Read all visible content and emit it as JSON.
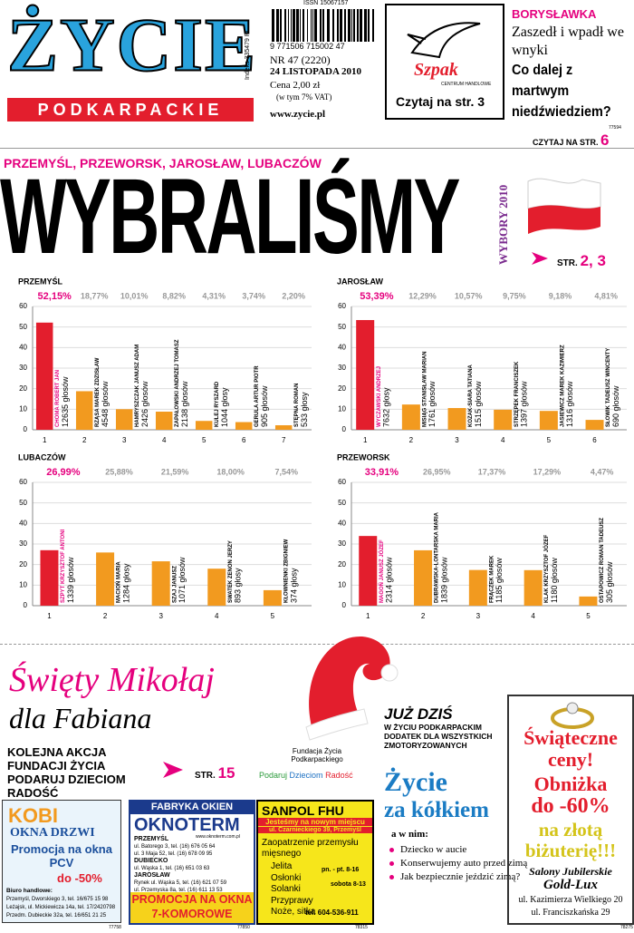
{
  "masthead": {
    "logo": "ŻYCIE",
    "region": "PODKARPACKIE",
    "issn": "ISSN 15067157",
    "barcode": "9 771506 715002",
    "barcode_suffix": "47",
    "issue": "NR 47 (2220)",
    "date": "24 LISTOPADA 2010",
    "price": "Cena 2,00 zł",
    "vat": "(w tym 7% VAT)",
    "url": "www.zycie.pl",
    "index": "Indeks 335479 PL"
  },
  "szpak_ad": {
    "brand": "Szpak",
    "sub": "CENTRUM HANDLOWE",
    "cta": "Czytaj na str. 3"
  },
  "teaser": {
    "kicker": "BORYSŁAWKA",
    "lead": "Zaszedł i wpadł we wnyki",
    "headline": "Co dalej z martwym niedźwiedziem?",
    "code": "77594",
    "cta_text": "CZYTAJ NA STR.",
    "cta_page": "6"
  },
  "main": {
    "towns": "PRZEMYŚL, PRZEWORSK, JAROSŁAW, LUBACZÓW",
    "headline": "WYBRALIŚMY",
    "badge": "WYBORY 2010",
    "pages_label": "STR.",
    "pages": "2, 3"
  },
  "chart_data": [
    {
      "type": "bar",
      "title": "PRZEMYŚL",
      "categories": [
        "1",
        "2",
        "3",
        "4",
        "5",
        "6",
        "7"
      ],
      "values": [
        52.15,
        18.77,
        10.01,
        8.82,
        4.31,
        3.74,
        2.2
      ],
      "value_labels": [
        "52,15%",
        "18,77%",
        "10,01%",
        "8,82%",
        "4,31%",
        "3,74%",
        "2,20%"
      ],
      "candidates": [
        "CHOMA ROBERT JAN",
        "RZĄSA MAREK ZDZISŁAW",
        "HAMRYSZCZAK JANUSZ ADAM",
        "ZAPAŁOWSKI ANDRZEJ TOMASZ",
        "KULEJ RYSZARD",
        "GERULA ARTUR PIOTR",
        "STĘPNA ROMAN"
      ],
      "votes": [
        "12635 głosów",
        "4548 głosów",
        "2426 głosów",
        "2138 głosów",
        "1044 głosy",
        "905 głosów",
        "533 głosy"
      ],
      "colors": [
        "#e31e2d",
        "#f29a1f",
        "#f29a1f",
        "#f29a1f",
        "#f29a1f",
        "#f29a1f",
        "#f29a1f"
      ],
      "ylim": [
        0,
        60
      ],
      "yticks": [
        0,
        10,
        20,
        30,
        40,
        50,
        60
      ],
      "grid": true
    },
    {
      "type": "bar",
      "title": "JAROSŁAW",
      "categories": [
        "1",
        "2",
        "3",
        "4",
        "5",
        "6"
      ],
      "values": [
        53.39,
        12.29,
        10.57,
        9.75,
        9.18,
        4.81
      ],
      "value_labels": [
        "53,39%",
        "12,29%",
        "10,57%",
        "9,75%",
        "9,18%",
        "4,81%"
      ],
      "candidates": [
        "WYCZAWSKI ANDRZEJ",
        "MISIĄG STANISŁAW MARIAN",
        "KOZAK-SIARA TATIANA",
        "STRZĘPEK FRANCISZEK",
        "JASIEWICZ MAREK KAZIMIERZ",
        "SŁOWIK TADEUSZ WINCENTY"
      ],
      "votes": [
        "7632 głosy",
        "1761 głosów",
        "1515 głosów",
        "1397 głosów",
        "1316 głosów",
        "690 głosów"
      ],
      "colors": [
        "#e31e2d",
        "#f29a1f",
        "#f29a1f",
        "#f29a1f",
        "#f29a1f",
        "#f29a1f"
      ],
      "ylim": [
        0,
        60
      ],
      "yticks": [
        0,
        10,
        20,
        30,
        40,
        50,
        60
      ],
      "grid": true
    },
    {
      "type": "bar",
      "title": "LUBACZÓW",
      "categories": [
        "1",
        "2",
        "3",
        "4",
        "5"
      ],
      "values": [
        26.99,
        25.88,
        21.59,
        18.0,
        7.54
      ],
      "value_labels": [
        "26,99%",
        "25,88%",
        "21,59%",
        "18,00%",
        "7,54%"
      ],
      "candidates": [
        "SZPYT KRZYSZTOF ANTONI",
        "MACIOŃ MARIA",
        "SZAJ JANUSZ",
        "SWATEK ZENON JERZY",
        "KŁOWNIENKI ZBIGNIEW"
      ],
      "votes": [
        "1339 głosów",
        "1284 głosy",
        "1071 głosów",
        "893 głosy",
        "374 głosy"
      ],
      "colors": [
        "#e31e2d",
        "#f29a1f",
        "#f29a1f",
        "#f29a1f",
        "#f29a1f"
      ],
      "ylim": [
        0,
        60
      ],
      "yticks": [
        0,
        10,
        20,
        30,
        40,
        50,
        60
      ],
      "grid": true
    },
    {
      "type": "bar",
      "title": "PRZEWORSK",
      "categories": [
        "1",
        "2",
        "3",
        "4",
        "5"
      ],
      "values": [
        33.91,
        26.95,
        17.37,
        17.29,
        4.47
      ],
      "value_labels": [
        "33,91%",
        "26,95%",
        "17,37%",
        "17,29%",
        "4,47%"
      ],
      "candidates": [
        "MAGOŃ JANUSZ JÓZEF",
        "DUBRAWSKA-LONTARSKA MARIA",
        "FRĄCZEK MAREK",
        "KLAK KRZYSZTOF JÓZEF",
        "OSTAPOWICZ ROMAN TADEUSZ"
      ],
      "votes": [
        "2314 głosów",
        "1839 głosów",
        "1185 głosów",
        "1180 głosów",
        "305 głosów"
      ],
      "colors": [
        "#e31e2d",
        "#f29a1f",
        "#f29a1f",
        "#f29a1f",
        "#f29a1f"
      ],
      "ylim": [
        0,
        60
      ],
      "yticks": [
        0,
        10,
        20,
        30,
        40,
        50,
        60
      ],
      "grid": true
    }
  ],
  "mikolaj": {
    "title": "Święty Mikołaj",
    "subtitle": "dla Fabiana",
    "lines": [
      "KOLEJNA AKCJA",
      "FUNDACJI ŻYCIA",
      "PODARUJ DZIECIOM",
      "RADOŚĆ"
    ],
    "pages_label": "STR.",
    "page": "15",
    "foundation": "Fundacja Życia Podkarpackiego",
    "slogan_1": "Podaruj",
    "slogan_2": "Dzieciom",
    "slogan_3": "Radość"
  },
  "supplement": {
    "kicker": "JUŻ DZIŚ",
    "text": "W ŻYCIU PODKARPACKIM DODATEK DLA WSZYSTKICH ZMOTORYZOWANYCH",
    "title_1": "Życie",
    "title_2": "za kółkiem",
    "intro": "a w nim:",
    "items": [
      "Dziecko w aucie",
      "Konserwujemy auto przed zimą",
      "Jak bezpiecznie jeździć zimą?"
    ]
  },
  "jeweler_ad": {
    "line_1": "Świąteczne ceny!",
    "line_2": "Obniżka",
    "line_3": "do -60%",
    "line_4": "na złotą biżuterię!!!",
    "line_5": "Salony Jubilerskie",
    "line_6": "Gold-Lux",
    "line_7": "ul. Kazimierza Wielkiego 20",
    "line_8": "ul. Franciszkańska 29",
    "code": "78275"
  },
  "kobi_ad": {
    "brand": "KOBI",
    "sub": "OKNA DRZWI",
    "promo": "Promocja na okna PCV",
    "discount": "do -50%",
    "office": "Biuro handlowe:",
    "addresses": [
      "Przemyśl, Dworskiego 3, tel. 16/675 15 98",
      "Leżajsk, ul. Mickiewicza 14a, tel. 17/2420798",
      "Przedm. Dubieckie 32a, tel. 16/651 21 25"
    ],
    "code": "77758"
  },
  "oknoterm_ad": {
    "kicker": "FABRYKA OKIEN",
    "brand": "OKNOTERM",
    "url": "www.oknoterm.com.pl",
    "city_1": "PRZEMYŚL",
    "lines_1": [
      "ul. Batorego 3, tel. (16) 676 05 64",
      "ul. 3 Maja 52, tel. (16) 678 09 95"
    ],
    "city_2": "DUBIECKO",
    "lines_2": [
      "ul. Wąska 1, tel. (16) 651 03 63"
    ],
    "city_3": "JAROSŁAW",
    "lines_3": [
      "Rynek ul. Wąska 5, tel. (16) 621 07 59",
      "ul. Przemyska 8a, tel. (16) 611 13 53"
    ],
    "promo": "PROMOCJA NA OKNA 7-KOMOROWE",
    "code": "77850"
  },
  "sanpol_ad": {
    "brand": "SANPOL FHU",
    "moved": "Jesteśmy na nowym miejscu",
    "address": "ul. Czarnieckiego 39, Przemyśl",
    "offer": "Zaopatrzenie przemysłu mięsnego",
    "items": [
      "Jelita",
      "Osłonki",
      "Solanki",
      "Przyprawy",
      "Noże, sitka"
    ],
    "hours_1": "pn. - pt. 8-16",
    "hours_2": "sobota 8-13",
    "phone": "tel. 604-536-911",
    "code": "78315"
  }
}
